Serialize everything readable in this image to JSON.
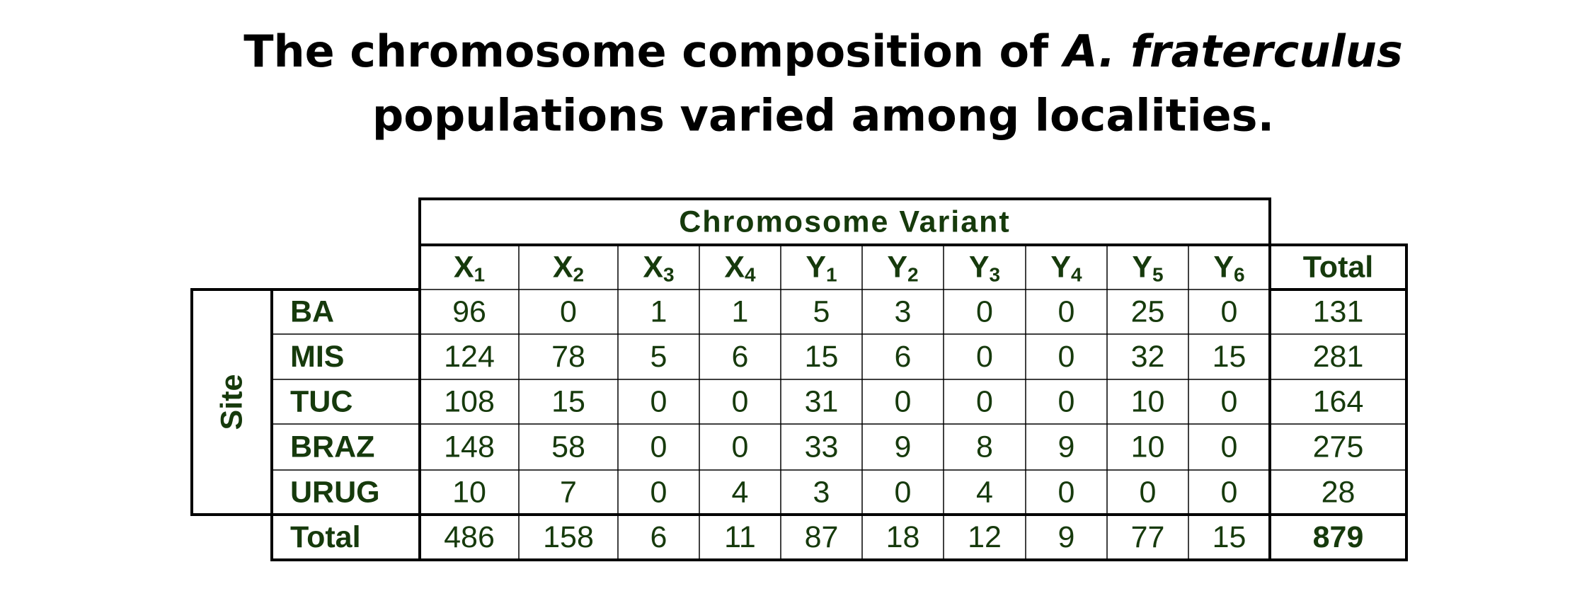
{
  "header": {
    "title_start": "The chromosome composition of",
    "title_italic": "A. fraterculus",
    "title_line2": "populations varied among localities."
  },
  "table": {
    "group_header": "Chromosome Variant",
    "side_header": "Site",
    "columns": [
      {
        "letter": "X",
        "sub": "1"
      },
      {
        "letter": "X",
        "sub": "2"
      },
      {
        "letter": "X",
        "sub": "3"
      },
      {
        "letter": "X",
        "sub": "4"
      },
      {
        "letter": "Y",
        "sub": "1"
      },
      {
        "letter": "Y",
        "sub": "2"
      },
      {
        "letter": "Y",
        "sub": "3"
      },
      {
        "letter": "Y",
        "sub": "4"
      },
      {
        "letter": "Y",
        "sub": "5"
      },
      {
        "letter": "Y",
        "sub": "6"
      }
    ],
    "total_header": "Total",
    "rows": [
      {
        "label": "BA",
        "values": [
          "96",
          "0",
          "1",
          "1",
          "5",
          "3",
          "0",
          "0",
          "25",
          "0"
        ],
        "total": "131"
      },
      {
        "label": "MIS",
        "values": [
          "124",
          "78",
          "5",
          "6",
          "15",
          "6",
          "0",
          "0",
          "32",
          "15"
        ],
        "total": "281"
      },
      {
        "label": "TUC",
        "values": [
          "108",
          "15",
          "0",
          "0",
          "31",
          "0",
          "0",
          "0",
          "10",
          "0"
        ],
        "total": "164"
      },
      {
        "label": "BRAZ",
        "values": [
          "148",
          "58",
          "0",
          "0",
          "33",
          "9",
          "8",
          "9",
          "10",
          "0"
        ],
        "total": "275"
      },
      {
        "label": "URUG",
        "values": [
          "10",
          "7",
          "0",
          "4",
          "3",
          "0",
          "4",
          "0",
          "0",
          "0"
        ],
        "total": "28"
      }
    ],
    "totals_row": {
      "label": "Total",
      "values": [
        "486",
        "158",
        "6",
        "11",
        "87",
        "18",
        "12",
        "9",
        "77",
        "15"
      ],
      "total": "879"
    }
  }
}
